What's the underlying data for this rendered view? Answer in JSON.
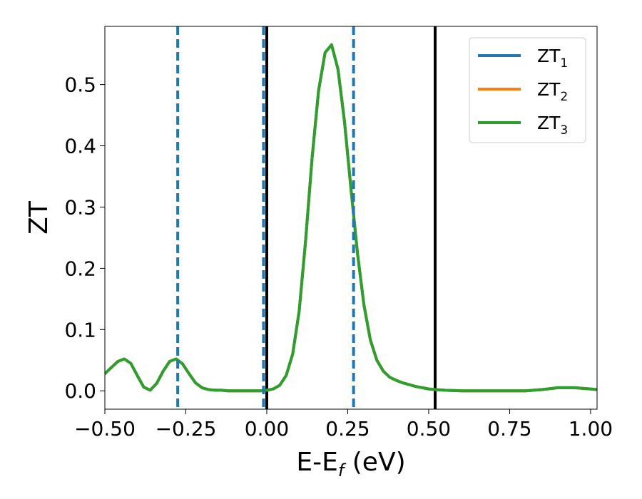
{
  "chart_data": {
    "type": "line",
    "title": "",
    "xlabel": {
      "main": "E-E",
      "sub": "f",
      "suffix": " (eV)"
    },
    "ylabel": "ZT",
    "xlim": [
      -0.5,
      1.02
    ],
    "ylim": [
      -0.03,
      0.595
    ],
    "xticks": [
      -0.5,
      -0.25,
      0.0,
      0.25,
      0.5,
      0.75,
      1.0
    ],
    "xtick_labels": [
      "−0.50",
      "−0.25",
      "0.00",
      "0.25",
      "0.50",
      "0.75",
      "1.00"
    ],
    "yticks": [
      0.0,
      0.1,
      0.2,
      0.3,
      0.4,
      0.5
    ],
    "ytick_labels": [
      "0.0",
      "0.1",
      "0.2",
      "0.3",
      "0.4",
      "0.5"
    ],
    "grid": false,
    "legend_position": "top-right",
    "x": [
      -0.5,
      -0.48,
      -0.46,
      -0.44,
      -0.42,
      -0.4,
      -0.38,
      -0.36,
      -0.34,
      -0.32,
      -0.3,
      -0.28,
      -0.26,
      -0.24,
      -0.22,
      -0.2,
      -0.18,
      -0.16,
      -0.14,
      -0.12,
      -0.1,
      -0.08,
      -0.06,
      -0.04,
      -0.02,
      0.0,
      0.02,
      0.04,
      0.06,
      0.08,
      0.1,
      0.12,
      0.14,
      0.16,
      0.18,
      0.2,
      0.22,
      0.24,
      0.26,
      0.28,
      0.3,
      0.32,
      0.34,
      0.36,
      0.38,
      0.4,
      0.42,
      0.44,
      0.46,
      0.48,
      0.5,
      0.52,
      0.55,
      0.6,
      0.65,
      0.7,
      0.75,
      0.8,
      0.85,
      0.9,
      0.95,
      1.0,
      1.02
    ],
    "series": [
      {
        "name_main": "ZT",
        "name_sub": "1",
        "color": "#1f77b4",
        "values": [
          0.028,
          0.038,
          0.048,
          0.052,
          0.045,
          0.025,
          0.006,
          0.001,
          0.012,
          0.032,
          0.048,
          0.052,
          0.044,
          0.028,
          0.013,
          0.005,
          0.002,
          0.001,
          0.001,
          0.0,
          0.0,
          0.0,
          0.0,
          0.0,
          0.0,
          0.001,
          0.003,
          0.009,
          0.025,
          0.06,
          0.13,
          0.245,
          0.38,
          0.49,
          0.552,
          0.565,
          0.525,
          0.44,
          0.33,
          0.225,
          0.14,
          0.083,
          0.05,
          0.032,
          0.022,
          0.017,
          0.013,
          0.01,
          0.007,
          0.005,
          0.003,
          0.002,
          0.001,
          0.0,
          0.0,
          0.0,
          0.0,
          0.0,
          0.002,
          0.005,
          0.005,
          0.003,
          0.002
        ]
      },
      {
        "name_main": "ZT",
        "name_sub": "2",
        "color": "#ff7f0e",
        "values": [
          0.028,
          0.038,
          0.048,
          0.052,
          0.045,
          0.025,
          0.006,
          0.001,
          0.012,
          0.032,
          0.048,
          0.052,
          0.044,
          0.028,
          0.013,
          0.005,
          0.002,
          0.001,
          0.001,
          0.0,
          0.0,
          0.0,
          0.0,
          0.0,
          0.0,
          0.001,
          0.003,
          0.009,
          0.025,
          0.06,
          0.13,
          0.245,
          0.38,
          0.49,
          0.552,
          0.565,
          0.525,
          0.44,
          0.33,
          0.225,
          0.14,
          0.083,
          0.05,
          0.032,
          0.022,
          0.017,
          0.013,
          0.01,
          0.007,
          0.005,
          0.003,
          0.002,
          0.001,
          0.0,
          0.0,
          0.0,
          0.0,
          0.0,
          0.002,
          0.005,
          0.005,
          0.003,
          0.002
        ]
      },
      {
        "name_main": "ZT",
        "name_sub": "3",
        "color": "#2ca02c",
        "values": [
          0.028,
          0.038,
          0.048,
          0.052,
          0.045,
          0.025,
          0.006,
          0.001,
          0.012,
          0.032,
          0.048,
          0.052,
          0.044,
          0.028,
          0.013,
          0.005,
          0.002,
          0.001,
          0.001,
          0.0,
          0.0,
          0.0,
          0.0,
          0.0,
          0.0,
          0.001,
          0.003,
          0.009,
          0.025,
          0.06,
          0.13,
          0.245,
          0.38,
          0.49,
          0.552,
          0.565,
          0.525,
          0.44,
          0.33,
          0.225,
          0.14,
          0.083,
          0.05,
          0.032,
          0.022,
          0.017,
          0.013,
          0.01,
          0.007,
          0.005,
          0.003,
          0.002,
          0.001,
          0.0,
          0.0,
          0.0,
          0.0,
          0.0,
          0.002,
          0.005,
          0.005,
          0.003,
          0.002
        ]
      }
    ],
    "vlines_dashed": {
      "color": "#1f77b4",
      "x": [
        -0.275,
        -0.01,
        0.268
      ]
    },
    "vlines_solid": {
      "color": "#000000",
      "x": [
        0.0,
        0.52
      ]
    }
  }
}
